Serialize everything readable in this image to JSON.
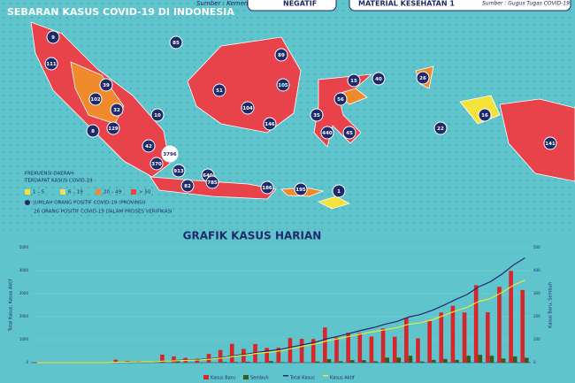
{
  "header": {
    "title": "SEBARAN KASUS COVID-19 DI INDONESIA",
    "source": "Sumber : Kemenkes",
    "box1": "NEGATIF",
    "box2": "MATERIAL KESEHATAN 1",
    "source2": "Sumber : Gugus Tugas COVID-19"
  },
  "map": {
    "bubbles": [
      "9",
      "111",
      "39",
      "102",
      "32",
      "10",
      "129",
      "8",
      "42",
      "370",
      "3796",
      "913",
      "82",
      "640",
      "785",
      "186",
      "195",
      "1",
      "85",
      "51",
      "89",
      "105",
      "104",
      "146",
      "35",
      "56",
      "440",
      "45",
      "15",
      "40",
      "26",
      "16",
      "22",
      "141"
    ],
    "legend": {
      "title1": "FREKUENSI DAERAH",
      "title2": "TERDAPAT KASUS COVID-19",
      "items": [
        {
          "label": "1 – 5",
          "color": "#f5e23a"
        },
        {
          "label": "6 – 19",
          "color": "#e9e25a"
        },
        {
          "label": "20 – 49",
          "color": "#f08a2c"
        },
        {
          "label": "> 50",
          "color": "#e8424a"
        }
      ],
      "bubble_note": "JUMLAH ORANG POSITIF COVID-19 (PROVINSI)",
      "verify_note": "26 ORANG POSITIF COVID-19 DALAM PROSES VERIFIKASI"
    }
  },
  "chart_data": {
    "type": "bar",
    "title": "GRAFIK KASUS HARIAN",
    "y_label": "Total Kasus, Kasus Aktif",
    "y2_label": "Kasus Baru, Sembuh",
    "ylim": [
      0,
      5000
    ],
    "yticks": [
      0,
      1000,
      2000,
      3000,
      4000,
      5000
    ],
    "y2lim": [
      0,
      500
    ],
    "y2ticks": [
      0,
      100,
      200,
      300,
      400,
      500
    ],
    "series": [
      {
        "name": "Kasus Baru",
        "color": "#d7262b",
        "axis": "y2",
        "values": [
          2,
          0,
          0,
          0,
          2,
          0,
          2,
          13,
          8,
          7,
          0,
          35,
          27,
          21,
          17,
          38,
          55,
          82,
          60,
          81,
          64,
          65,
          107,
          104,
          103,
          153,
          109,
          130,
          129,
          114,
          149,
          113,
          196,
          106,
          181,
          218,
          247,
          218,
          337,
          219,
          330,
          399,
          316
        ]
      },
      {
        "name": "Sembuh",
        "color": "#3a5a1e",
        "axis": "y2",
        "values": [
          0,
          0,
          0,
          0,
          0,
          0,
          0,
          0,
          0,
          0,
          0,
          0,
          8,
          0,
          1,
          0,
          3,
          3,
          4,
          1,
          7,
          2,
          1,
          0,
          5,
          15,
          6,
          11,
          11,
          6,
          22,
          22,
          30,
          5,
          12,
          16,
          12,
          30,
          34,
          30,
          18,
          27,
          21
        ]
      },
      {
        "name": "Total Kasus",
        "color": "#1f2a6b",
        "values": [
          2,
          2,
          2,
          2,
          4,
          4,
          6,
          19,
          27,
          34,
          34,
          69,
          96,
          117,
          134,
          172,
          227,
          309,
          369,
          450,
          514,
          579,
          686,
          790,
          893,
          1046,
          1155,
          1285,
          1414,
          1528,
          1677,
          1790,
          1986,
          2092,
          2273,
          2491,
          2738,
          2956,
          3293,
          3512,
          3842,
          4241,
          4557
        ]
      },
      {
        "name": "Kasus Aktif",
        "color": "#e8e83a",
        "values": [
          2,
          2,
          2,
          2,
          4,
          4,
          6,
          19,
          27,
          34,
          34,
          69,
          83,
          102,
          118,
          153,
          204,
          279,
          331,
          409,
          457,
          519,
          622,
          724,
          818,
          952,
          1049,
          1152,
          1257,
          1347,
          1436,
          1526,
          1671,
          1732,
          1861,
          2048,
          2244,
          2404,
          2654,
          2787,
          3047,
          3360,
          3588
        ]
      }
    ]
  }
}
